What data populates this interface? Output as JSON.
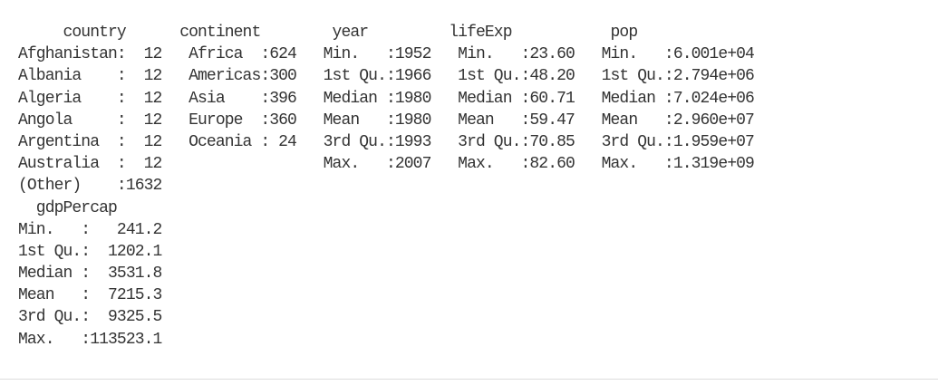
{
  "console": {
    "lines": [
      "     country      continent        year         lifeExp           pop",
      "Afghanistan:  12   Africa  :624   Min.   :1952   Min.   :23.60   Min.   :6.001e+04",
      "Albania    :  12   Americas:300   1st Qu.:1966   1st Qu.:48.20   1st Qu.:2.794e+06",
      "Algeria    :  12   Asia    :396   Median :1980   Median :60.71   Median :7.024e+06",
      "Angola     :  12   Europe  :360   Mean   :1980   Mean   :59.47   Mean   :2.960e+07",
      "Argentina  :  12   Oceania : 24   3rd Qu.:1993   3rd Qu.:70.85   3rd Qu.:1.959e+07",
      "Australia  :  12                  Max.   :2007   Max.   :82.60   Max.   :1.319e+09",
      "(Other)    :1632",
      "  gdpPercap",
      "Min.   :   241.2",
      "1st Qu.:  1202.1",
      "Median :  3531.8",
      "Mean   :  7215.3",
      "3rd Qu.:  9325.5",
      "Max.   :113523.1"
    ]
  }
}
